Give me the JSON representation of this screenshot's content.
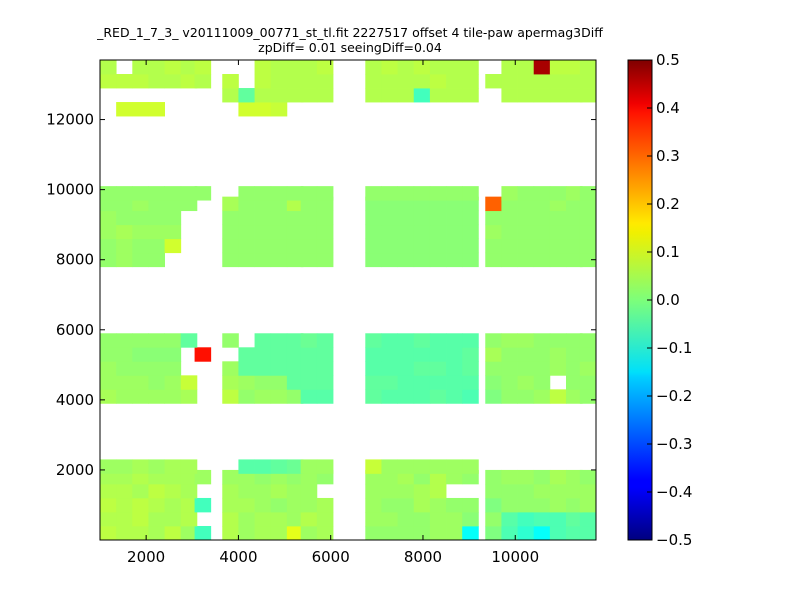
{
  "chart_data": {
    "type": "heatmap",
    "title": "_RED_1_7_3_ v20111009_00771_st_tl.fit 2227517 offset 4 tile-paw apermag3Diff",
    "subtitle": "zpDiff= 0.01 seeingDiff=0.04",
    "xlabel": "",
    "ylabel": "",
    "xlim": [
      1000,
      11750
    ],
    "ylim": [
      0,
      13700
    ],
    "x_ticks": [
      2000,
      4000,
      6000,
      8000,
      10000
    ],
    "x_tick_labels": [
      "2000",
      "4000",
      "6000",
      "8000",
      "10000"
    ],
    "y_ticks": [
      2000,
      4000,
      6000,
      8000,
      10000,
      12000
    ],
    "y_tick_labels": [
      "2000",
      "4000",
      "6000",
      "8000",
      "10000",
      "12000"
    ],
    "colorbar": {
      "colormap": "jet",
      "vmin": -0.5,
      "vmax": 0.5,
      "ticks": [
        0.5,
        0.4,
        0.3,
        0.2,
        0.1,
        0.0,
        -0.1,
        -0.2,
        -0.3,
        -0.4,
        -0.5
      ],
      "tick_labels": [
        "0.5",
        "0.4",
        "0.3",
        "0.2",
        "0.1",
        "0.0",
        "−0.1",
        "−0.2",
        "−0.3",
        "−0.4",
        "−0.5"
      ]
    },
    "cell_size": [
      350,
      400
    ],
    "x_columns": [
      1000,
      1350,
      1700,
      2050,
      2400,
      2750,
      3050,
      3650,
      4000,
      4350,
      4700,
      5050,
      5350,
      5700,
      6750,
      7100,
      7450,
      7800,
      8150,
      8500,
      8850,
      9350,
      9700,
      10050,
      10400,
      10750,
      11100,
      11400
    ],
    "y_rows": [
      0,
      400,
      800,
      1200,
      1600,
      1900,
      3900,
      4300,
      4700,
      5100,
      5500,
      5800,
      7800,
      8200,
      8600,
      9000,
      9400,
      9700,
      11700,
      12100,
      12500,
      12900,
      13300
    ],
    "cell_values": [
      [
        0.06,
        0.05,
        0.05,
        0.04,
        0.06,
        0.03,
        -0.06,
        0.05,
        0.03,
        0.04,
        0.04,
        0.1,
        0.03,
        0.04,
        0.02,
        0.02,
        0.02,
        0.02,
        0.03,
        0.03,
        -0.12,
        0.0,
        -0.05,
        -0.08,
        -0.12,
        -0.05,
        -0.04,
        -0.04
      ],
      [
        0.05,
        0.05,
        0.06,
        0.04,
        0.04,
        0.05,
        null,
        0.05,
        0.03,
        0.04,
        0.04,
        0.03,
        0.05,
        0.04,
        0.03,
        0.03,
        0.02,
        0.02,
        0.03,
        0.03,
        0.01,
        0.02,
        -0.04,
        -0.06,
        -0.05,
        -0.05,
        -0.03,
        -0.04
      ],
      [
        0.06,
        0.05,
        0.06,
        0.05,
        0.04,
        0.05,
        -0.06,
        0.04,
        0.04,
        0.03,
        0.02,
        0.03,
        0.03,
        0.04,
        0.03,
        0.02,
        0.02,
        0.04,
        0.03,
        0.02,
        0.02,
        0.0,
        0.02,
        0.02,
        0.02,
        0.03,
        0.02,
        0.03
      ],
      [
        0.05,
        0.05,
        0.04,
        0.06,
        0.05,
        0.04,
        null,
        0.04,
        0.03,
        0.03,
        0.04,
        0.03,
        0.03,
        null,
        0.03,
        0.03,
        0.03,
        0.04,
        0.05,
        null,
        null,
        0.02,
        0.02,
        0.02,
        0.03,
        0.03,
        0.03,
        0.03
      ],
      [
        0.04,
        0.04,
        0.05,
        0.04,
        0.04,
        0.04,
        0.03,
        0.03,
        0.03,
        0.02,
        0.03,
        0.02,
        0.03,
        0.02,
        0.03,
        0.03,
        0.04,
        0.02,
        0.05,
        0.03,
        0.02,
        0.02,
        0.03,
        0.03,
        0.02,
        0.04,
        0.03,
        0.02
      ],
      [
        0.03,
        0.03,
        0.04,
        0.03,
        0.04,
        0.04,
        null,
        null,
        -0.04,
        -0.04,
        -0.03,
        -0.02,
        0.03,
        0.03,
        0.07,
        0.03,
        0.03,
        0.03,
        0.03,
        0.03,
        0.03,
        null,
        null,
        null,
        null,
        null,
        null,
        null
      ],
      [
        0.04,
        0.03,
        0.03,
        0.03,
        0.03,
        0.04,
        null,
        0.06,
        0.02,
        0.03,
        0.03,
        0.02,
        -0.04,
        -0.04,
        -0.03,
        -0.04,
        -0.04,
        -0.04,
        -0.03,
        -0.04,
        -0.05,
        0.0,
        0.02,
        0.02,
        0.03,
        0.06,
        0.03,
        0.02
      ],
      [
        0.03,
        0.03,
        0.03,
        0.02,
        0.03,
        0.07,
        null,
        0.04,
        0.03,
        0.02,
        0.02,
        -0.03,
        -0.03,
        -0.03,
        -0.03,
        -0.03,
        -0.04,
        -0.04,
        -0.04,
        -0.04,
        -0.04,
        0.01,
        0.02,
        0.03,
        0.02,
        null,
        0.02,
        0.02
      ],
      [
        0.03,
        0.02,
        0.02,
        0.02,
        0.02,
        null,
        null,
        0.03,
        -0.03,
        -0.03,
        -0.03,
        -0.03,
        -0.03,
        -0.03,
        -0.04,
        -0.04,
        -0.04,
        -0.03,
        -0.03,
        -0.04,
        -0.03,
        0.02,
        0.02,
        0.02,
        0.02,
        0.03,
        0.02,
        0.03
      ],
      [
        0.02,
        0.02,
        0.01,
        0.01,
        0.01,
        null,
        0.36,
        null,
        -0.03,
        -0.03,
        -0.03,
        -0.03,
        -0.03,
        -0.03,
        -0.04,
        -0.04,
        -0.04,
        -0.04,
        -0.04,
        -0.04,
        -0.03,
        0.04,
        0.02,
        0.02,
        0.02,
        0.03,
        0.02,
        0.02
      ],
      [
        0.02,
        0.02,
        0.02,
        0.02,
        0.02,
        -0.03,
        null,
        0.02,
        null,
        -0.03,
        -0.03,
        -0.03,
        -0.02,
        -0.03,
        -0.03,
        -0.04,
        -0.04,
        -0.03,
        -0.04,
        -0.04,
        -0.04,
        0.02,
        0.03,
        0.03,
        0.02,
        0.02,
        0.02,
        0.02
      ],
      [
        null,
        null,
        null,
        null,
        null,
        null,
        null,
        null,
        null,
        null,
        null,
        null,
        null,
        null,
        null,
        null,
        null,
        null,
        null,
        null,
        null,
        null,
        null,
        null,
        null,
        null,
        null,
        null
      ],
      [
        0.02,
        0.03,
        0.02,
        0.02,
        null,
        null,
        null,
        0.02,
        0.02,
        0.02,
        0.02,
        0.02,
        0.02,
        0.02,
        0.01,
        0.01,
        0.01,
        0.01,
        0.01,
        0.01,
        0.01,
        0.02,
        0.02,
        0.02,
        0.02,
        0.02,
        0.02,
        0.02
      ],
      [
        0.02,
        0.03,
        0.02,
        0.02,
        0.08,
        null,
        null,
        0.02,
        0.02,
        0.02,
        0.02,
        0.02,
        0.02,
        0.02,
        0.01,
        0.01,
        0.01,
        0.01,
        0.01,
        0.01,
        0.01,
        0.02,
        0.02,
        0.02,
        0.02,
        0.02,
        0.02,
        0.02
      ],
      [
        0.03,
        0.04,
        0.03,
        0.03,
        0.03,
        null,
        null,
        0.02,
        0.02,
        0.02,
        0.02,
        0.02,
        0.02,
        0.02,
        0.01,
        0.01,
        0.01,
        0.01,
        0.01,
        0.01,
        0.01,
        0.03,
        0.02,
        0.02,
        0.02,
        0.02,
        0.02,
        0.02
      ],
      [
        0.03,
        0.02,
        0.02,
        0.02,
        0.02,
        null,
        null,
        0.02,
        0.02,
        0.02,
        0.02,
        0.02,
        0.02,
        0.02,
        0.01,
        0.01,
        0.01,
        0.01,
        0.01,
        0.01,
        0.01,
        0.02,
        0.02,
        0.02,
        0.02,
        0.02,
        0.02,
        0.02
      ],
      [
        0.02,
        0.02,
        0.03,
        0.02,
        0.02,
        0.02,
        null,
        0.04,
        0.02,
        0.02,
        0.02,
        0.05,
        0.02,
        0.02,
        0.01,
        0.01,
        0.01,
        0.01,
        0.01,
        0.01,
        0.01,
        0.28,
        0.02,
        0.02,
        0.02,
        0.03,
        0.02,
        0.02
      ],
      [
        0.02,
        0.02,
        0.02,
        0.02,
        0.02,
        0.02,
        0.02,
        null,
        0.02,
        0.02,
        0.02,
        0.02,
        0.02,
        0.02,
        0.02,
        0.02,
        0.02,
        0.02,
        0.02,
        0.02,
        0.02,
        null,
        0.03,
        0.02,
        0.02,
        0.02,
        0.03,
        0.02
      ],
      [
        null,
        null,
        null,
        null,
        null,
        null,
        null,
        null,
        null,
        null,
        null,
        null,
        null,
        null,
        null,
        null,
        null,
        null,
        null,
        null,
        null,
        null,
        null,
        null,
        null,
        null,
        null,
        null
      ],
      [
        null,
        0.08,
        0.08,
        0.08,
        null,
        null,
        null,
        null,
        0.08,
        0.08,
        0.07,
        null,
        null,
        null,
        null,
        null,
        null,
        null,
        null,
        null,
        null,
        null,
        null,
        null,
        null,
        null,
        null,
        null
      ],
      [
        null,
        null,
        null,
        null,
        null,
        null,
        null,
        0.05,
        -0.03,
        0.05,
        0.05,
        0.05,
        0.05,
        0.05,
        0.05,
        0.05,
        0.05,
        -0.06,
        0.05,
        0.05,
        0.05,
        null,
        0.05,
        0.05,
        0.05,
        0.05,
        0.05,
        0.05
      ],
      [
        0.06,
        0.06,
        0.06,
        0.05,
        0.05,
        0.06,
        0.05,
        0.06,
        null,
        0.06,
        0.05,
        0.05,
        0.05,
        0.05,
        0.05,
        0.05,
        0.05,
        0.05,
        0.06,
        0.05,
        0.05,
        0.05,
        0.05,
        0.05,
        0.05,
        0.05,
        0.05,
        0.05
      ],
      [
        0.05,
        null,
        0.05,
        0.05,
        0.06,
        0.05,
        0.06,
        null,
        null,
        0.06,
        0.05,
        0.05,
        0.05,
        0.06,
        0.05,
        0.06,
        0.05,
        0.06,
        0.05,
        0.05,
        0.05,
        null,
        0.05,
        0.05,
        0.46,
        0.06,
        0.06,
        0.05
      ]
    ]
  }
}
